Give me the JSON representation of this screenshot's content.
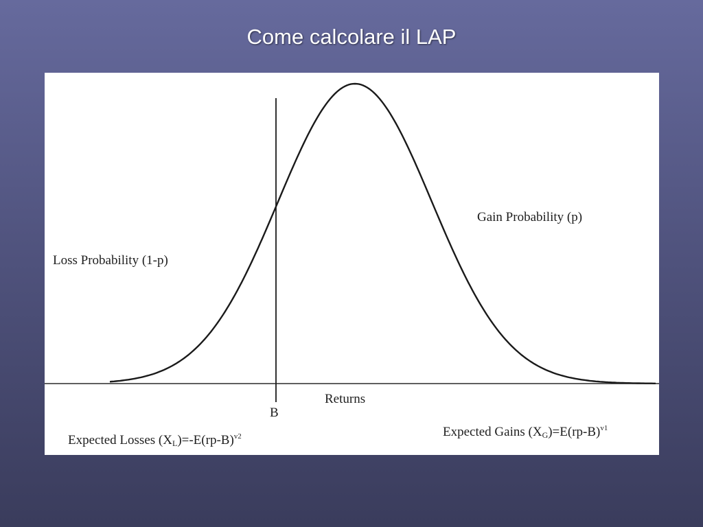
{
  "slide": {
    "title": "Come calcolare il LAP",
    "background_colors": [
      "#666a9d",
      "#3a3c5c"
    ]
  },
  "figure": {
    "curve": "bell-shaped distribution of returns",
    "labels": {
      "loss_probability": "Loss Probability (1-p)",
      "gain_probability": "Gain Probability (p)",
      "threshold": "B",
      "x_axis": "Returns",
      "expected_losses": {
        "prefix": "Expected Losses (X",
        "subscript": "L",
        "suffix": ")=-E(rp-B)",
        "superscript": "v2"
      },
      "expected_gains": {
        "prefix": "Expected Gains (X",
        "subscript": "G",
        "suffix": ")=E(rp-B)",
        "superscript": "v1"
      }
    },
    "line_color": "#1a1a1a"
  }
}
